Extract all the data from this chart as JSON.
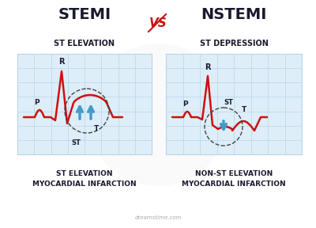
{
  "title_left": "STEMI",
  "title_right": "NSTEMI",
  "vs_text": "VS",
  "subtitle_left": "ST ELEVATION",
  "subtitle_right": "ST DEPRESSION",
  "caption_left": "ST ELEVATION\nMYOCARDIAL INFARCTION",
  "caption_right": "NON-ST ELEVATION\nMYOCARDIAL INFARCTION",
  "grid_color": "#b8d4e8",
  "ecg_color": "#cc1111",
  "arrow_color": "#4499cc",
  "bg_color": "#ffffff",
  "label_color": "#1a1a2e",
  "vs_color": "#cc1111",
  "grid_bg": "#ddeef8",
  "watermark": "dreamstime.com"
}
